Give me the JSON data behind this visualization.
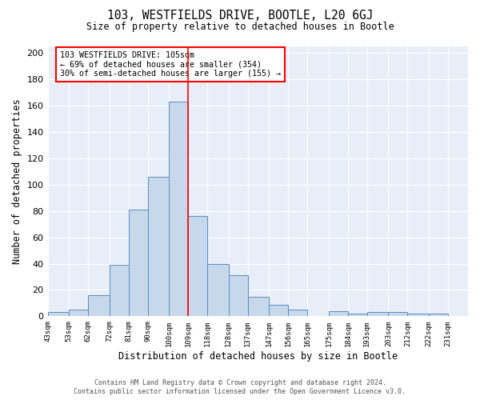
{
  "title": "103, WESTFIELDS DRIVE, BOOTLE, L20 6GJ",
  "subtitle": "Size of property relative to detached houses in Bootle",
  "xlabel": "Distribution of detached houses by size in Bootle",
  "ylabel": "Number of detached properties",
  "footer_line1": "Contains HM Land Registry data © Crown copyright and database right 2024.",
  "footer_line2": "Contains public sector information licensed under the Open Government Licence v3.0.",
  "annotation_line1": "103 WESTFIELDS DRIVE: 105sqm",
  "annotation_line2": "← 69% of detached houses are smaller (354)",
  "annotation_line3": "30% of semi-detached houses are larger (155) →",
  "bin_edges": [
    43,
    53,
    62,
    72,
    81,
    90,
    100,
    109,
    118,
    128,
    137,
    147,
    156,
    165,
    175,
    184,
    193,
    203,
    212,
    222,
    231
  ],
  "bin_counts": [
    3,
    5,
    16,
    39,
    81,
    106,
    163,
    76,
    40,
    31,
    15,
    9,
    5,
    0,
    4,
    2,
    3,
    3,
    2,
    2
  ],
  "bar_color": "#c8d8eb",
  "bar_edge_color": "#5b8cc8",
  "vline_color": "red",
  "annotation_box_color": "red",
  "ylim": [
    0,
    205
  ],
  "yticks": [
    0,
    20,
    40,
    60,
    80,
    100,
    120,
    140,
    160,
    180,
    200
  ],
  "background_color": "#e8eef8",
  "grid_color": "white",
  "tick_labels": [
    "43sqm",
    "53sqm",
    "62sqm",
    "72sqm",
    "81sqm",
    "90sqm",
    "100sqm",
    "109sqm",
    "118sqm",
    "128sqm",
    "137sqm",
    "147sqm",
    "156sqm",
    "165sqm",
    "175sqm",
    "184sqm",
    "193sqm",
    "203sqm",
    "212sqm",
    "222sqm",
    "231sqm"
  ]
}
